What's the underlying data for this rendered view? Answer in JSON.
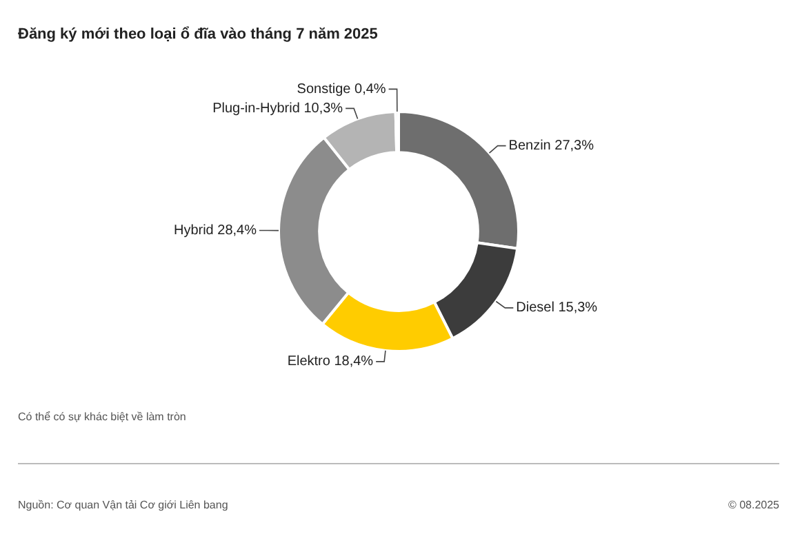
{
  "chart_data": {
    "type": "donut",
    "title": "Đăng ký mới theo loại ổ đĩa vào tháng 7 năm 2025",
    "categories": [
      "Benzin",
      "Diesel",
      "Elektro",
      "Hybrid",
      "Plug-in-Hybrid",
      "Sonstige"
    ],
    "values": [
      27.3,
      15.3,
      18.4,
      28.4,
      10.3,
      0.4
    ],
    "value_labels": [
      "27,3%",
      "15,3%",
      "18,4%",
      "28,4%",
      "10,3%",
      "0,4%"
    ],
    "colors": [
      "#6e6e6e",
      "#3c3c3c",
      "#ffcc00",
      "#8c8c8c",
      "#b4b4b4",
      "#dcdcdc"
    ],
    "legend": false,
    "annotations": [
      "Có thể có sự khác biệt về làm tròn",
      "Nguồn: Cơ quan Vận tải Cơ giới Liên bang",
      "© 08.2025"
    ]
  }
}
